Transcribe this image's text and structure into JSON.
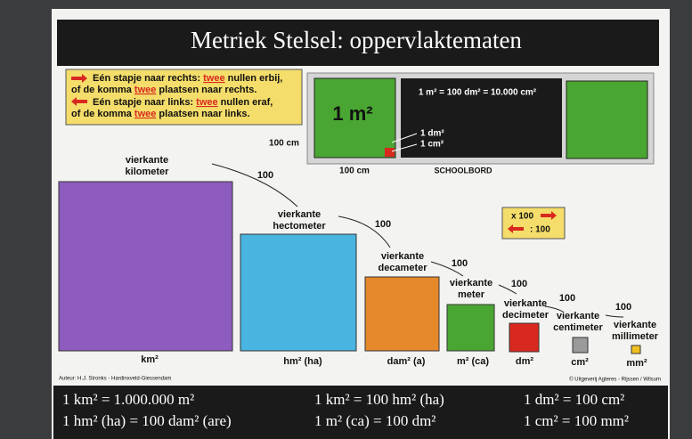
{
  "header": {
    "title": "Metriek Stelsel: oppervlaktematen"
  },
  "rules": [
    {
      "before": "Eén stapje naar rechts: ",
      "highlight": "twee",
      "after": " nullen erbij,"
    },
    {
      "before": "of de komma ",
      "highlight": "twee",
      "after": " plaatsen naar rechts."
    },
    {
      "before": "Eén stapje naar links: ",
      "highlight": "twee",
      "after": " nullen eraf,"
    },
    {
      "before": "of de komma ",
      "highlight": "twee",
      "after": " plaatsen naar links."
    }
  ],
  "blackboard": {
    "square_label": "1 m²",
    "equation": "1 m² = 100 dm² = 10.000 cm²",
    "dm_label": "1 dm²",
    "cm_label": "1 cm²",
    "side_label_left": "100 cm",
    "side_label_bottom": "100 cm",
    "caption": "SCHOOLBORD"
  },
  "units": [
    {
      "name_lines": [
        "vierkante",
        "kilometer"
      ],
      "symbol": "km²"
    },
    {
      "name_lines": [
        "vierkante",
        "hectometer"
      ],
      "symbol": "hm² (ha)"
    },
    {
      "name_lines": [
        "vierkante",
        "decameter"
      ],
      "symbol": "dam² (a)"
    },
    {
      "name_lines": [
        "vierkante",
        "meter"
      ],
      "symbol": "m² (ca)"
    },
    {
      "name_lines": [
        "vierkante",
        "decimeter"
      ],
      "symbol": "dm²"
    },
    {
      "name_lines": [
        "vierkante",
        "centimeter"
      ],
      "symbol": "cm²"
    },
    {
      "name_lines": [
        "vierkante",
        "millimeter"
      ],
      "symbol": "mm²"
    }
  ],
  "factors": [
    "100",
    "100",
    "100",
    "100",
    "100",
    "100"
  ],
  "conversion_key": {
    "multiply": "x 100",
    "divide": ": 100"
  },
  "credits": {
    "author": "Auteur: H.J. Stronks - Hardinxveld-Giessendam",
    "publisher": "© Uitgeverij Agteres - Rijssen / Wilsum"
  },
  "formulas": [
    "1 km² = 1.000.000 m²",
    "1 km² = 100 hm² (ha)",
    "1 dm² = 100 cm²",
    "1 hm² (ha) = 100 dam² (are)",
    "1 m² (ca) = 100 dm²",
    "1 cm² = 100 mm²"
  ]
}
